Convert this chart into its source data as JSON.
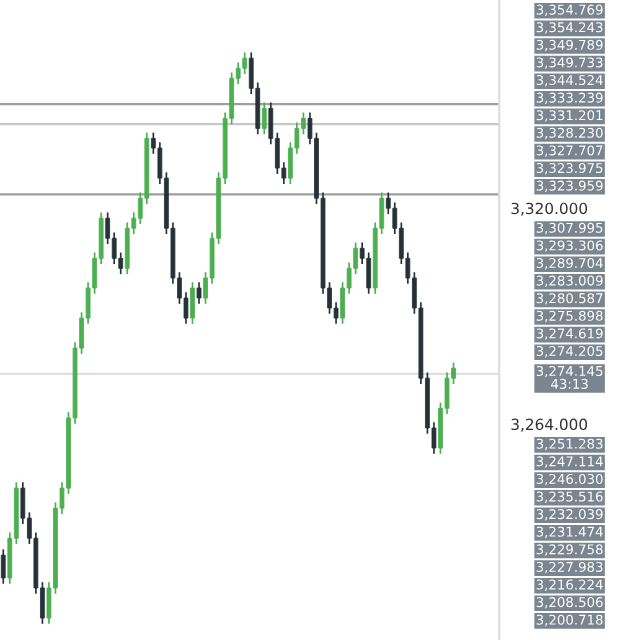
{
  "chart_data": {
    "type": "candlestick",
    "categories": [
      null,
      null,
      null,
      null,
      null,
      null,
      null,
      null,
      null,
      null,
      null,
      null,
      null,
      null,
      null,
      null,
      null,
      null,
      null,
      null,
      null,
      null,
      null,
      null,
      null,
      null,
      null,
      null,
      null,
      null,
      null,
      null,
      null,
      null,
      null,
      null,
      null,
      null,
      null,
      null,
      null,
      null,
      null,
      null,
      null,
      null,
      null,
      null,
      null,
      null,
      null,
      null,
      null,
      null,
      null,
      null,
      null,
      null,
      null,
      null,
      null,
      null,
      null,
      null,
      null,
      null,
      null,
      null,
      null,
      null
    ],
    "ohlc": [
      [
        3230.0,
        3231.5,
        3222.6,
        3224.1
      ],
      [
        3224.1,
        3235.9,
        3222.6,
        3234.4
      ],
      [
        3234.4,
        3248.9,
        3232.9,
        3247.4
      ],
      [
        3247.4,
        3248.9,
        3238.1,
        3239.6
      ],
      [
        3239.6,
        3241.1,
        3232.9,
        3234.4
      ],
      [
        3234.4,
        3235.9,
        3220.0,
        3221.5
      ],
      [
        3221.5,
        3223.0,
        3212.2,
        3213.7
      ],
      [
        3213.7,
        3223.0,
        3212.2,
        3221.5
      ],
      [
        3221.5,
        3243.7,
        3220.0,
        3242.2
      ],
      [
        3242.2,
        3248.9,
        3240.7,
        3247.4
      ],
      [
        3247.4,
        3267.1,
        3245.9,
        3265.6
      ],
      [
        3265.6,
        3285.2,
        3264.1,
        3283.7
      ],
      [
        3283.7,
        3293.0,
        3282.2,
        3291.5
      ],
      [
        3291.5,
        3300.8,
        3290.0,
        3299.3
      ],
      [
        3299.3,
        3308.5,
        3297.8,
        3307.0
      ],
      [
        3307.0,
        3318.9,
        3305.5,
        3317.4
      ],
      [
        3317.4,
        3318.9,
        3310.7,
        3312.2
      ],
      [
        3312.2,
        3313.7,
        3305.5,
        3307.0
      ],
      [
        3307.0,
        3308.5,
        3302.9,
        3304.4
      ],
      [
        3304.4,
        3316.3,
        3302.9,
        3314.8
      ],
      [
        3314.8,
        3318.9,
        3313.3,
        3317.4
      ],
      [
        3317.4,
        3324.1,
        3315.9,
        3322.6
      ],
      [
        3322.6,
        3339.6,
        3321.1,
        3338.1
      ],
      [
        3338.1,
        3339.6,
        3334.1,
        3335.6
      ],
      [
        3335.6,
        3337.1,
        3326.3,
        3327.8
      ],
      [
        3327.8,
        3329.3,
        3313.3,
        3314.8
      ],
      [
        3314.8,
        3316.3,
        3300.4,
        3301.9
      ],
      [
        3301.9,
        3303.4,
        3295.2,
        3296.7
      ],
      [
        3296.7,
        3298.2,
        3290.0,
        3291.5
      ],
      [
        3291.5,
        3300.8,
        3290.0,
        3299.3
      ],
      [
        3299.3,
        3300.8,
        3295.2,
        3296.7
      ],
      [
        3296.7,
        3303.4,
        3295.2,
        3301.9
      ],
      [
        3301.9,
        3313.7,
        3300.4,
        3312.2
      ],
      [
        3312.2,
        3329.3,
        3310.7,
        3327.8
      ],
      [
        3327.8,
        3344.8,
        3326.3,
        3343.3
      ],
      [
        3343.3,
        3355.2,
        3341.8,
        3353.7
      ],
      [
        3353.7,
        3357.8,
        3352.2,
        3356.3
      ],
      [
        3356.3,
        3360.4,
        3354.8,
        3358.9
      ],
      [
        3358.9,
        3360.4,
        3349.6,
        3351.1
      ],
      [
        3351.1,
        3352.6,
        3339.2,
        3340.7
      ],
      [
        3340.7,
        3347.4,
        3339.2,
        3345.9
      ],
      [
        3345.9,
        3347.4,
        3336.6,
        3338.1
      ],
      [
        3338.1,
        3339.6,
        3328.9,
        3330.4
      ],
      [
        3330.4,
        3331.9,
        3326.3,
        3327.8
      ],
      [
        3327.8,
        3337.1,
        3326.3,
        3335.6
      ],
      [
        3335.6,
        3342.2,
        3334.1,
        3340.7
      ],
      [
        3340.7,
        3344.8,
        3339.2,
        3343.3
      ],
      [
        3343.3,
        3344.8,
        3336.6,
        3338.1
      ],
      [
        3338.1,
        3339.6,
        3321.1,
        3322.6
      ],
      [
        3322.6,
        3324.1,
        3297.8,
        3299.3
      ],
      [
        3299.3,
        3300.8,
        3292.6,
        3294.1
      ],
      [
        3294.1,
        3295.6,
        3290.0,
        3291.5
      ],
      [
        3291.5,
        3300.8,
        3290.0,
        3299.3
      ],
      [
        3299.3,
        3305.9,
        3297.8,
        3304.4
      ],
      [
        3304.4,
        3311.1,
        3302.9,
        3309.6
      ],
      [
        3309.6,
        3311.1,
        3305.5,
        3307.0
      ],
      [
        3307.0,
        3308.5,
        3297.8,
        3299.3
      ],
      [
        3299.3,
        3316.3,
        3297.8,
        3314.8
      ],
      [
        3314.8,
        3324.1,
        3313.3,
        3322.6
      ],
      [
        3322.6,
        3324.1,
        3318.5,
        3320.0
      ],
      [
        3320.0,
        3321.5,
        3313.3,
        3314.8
      ],
      [
        3314.8,
        3316.3,
        3305.5,
        3307.0
      ],
      [
        3307.0,
        3308.5,
        3300.4,
        3301.9
      ],
      [
        3301.9,
        3303.4,
        3292.6,
        3294.1
      ],
      [
        3294.1,
        3295.6,
        3274.4,
        3275.9
      ],
      [
        3275.9,
        3277.4,
        3261.5,
        3263.0
      ],
      [
        3263.0,
        3264.5,
        3256.3,
        3257.8
      ],
      [
        3257.8,
        3269.6,
        3256.3,
        3268.1
      ],
      [
        3268.1,
        3277.4,
        3266.6,
        3275.9
      ],
      [
        3275.9,
        3280.0,
        3274.4,
        3278.5
      ]
    ],
    "ylim": [
      3208,
      3374
    ],
    "yticks": [
      {
        "value": 3320,
        "label": "3,320.000"
      },
      {
        "value": 3264,
        "label": "3,264.000"
      }
    ],
    "tick_labels": "y",
    "grid": false,
    "legend": false,
    "ref_lines": [
      {
        "axis": "y",
        "value": 3347.0,
        "color": "#9e9e9e"
      },
      {
        "axis": "y",
        "value": 3341.8,
        "color": "#c8c8c8"
      },
      {
        "axis": "y",
        "value": 3323.6,
        "color": "#9e9e9e"
      },
      {
        "axis": "y",
        "value": 3277.0,
        "color": "#e0e0e0"
      }
    ],
    "annotations": [
      "3,354.769",
      "3,354.243",
      "3,349.789",
      "3,349.733",
      "3,344.524",
      "3,333.239",
      "3,331.201",
      "3,328.230",
      "3,327.707",
      "3,323.975",
      "3,323.959",
      "3,307.995",
      "3,293.306",
      "3,289.704",
      "3,283.009",
      "3,280.587",
      "3,275.898",
      "3,274.619",
      "3,274.205",
      "3,274.145\n43:13",
      "3,251.283",
      "3,247.114",
      "3,246.030",
      "3,235.516",
      "3,232.039",
      "3,231.474",
      "3,229.758",
      "3,227.983",
      "3,216.224",
      "3,208.506",
      "3,200.718"
    ]
  }
}
